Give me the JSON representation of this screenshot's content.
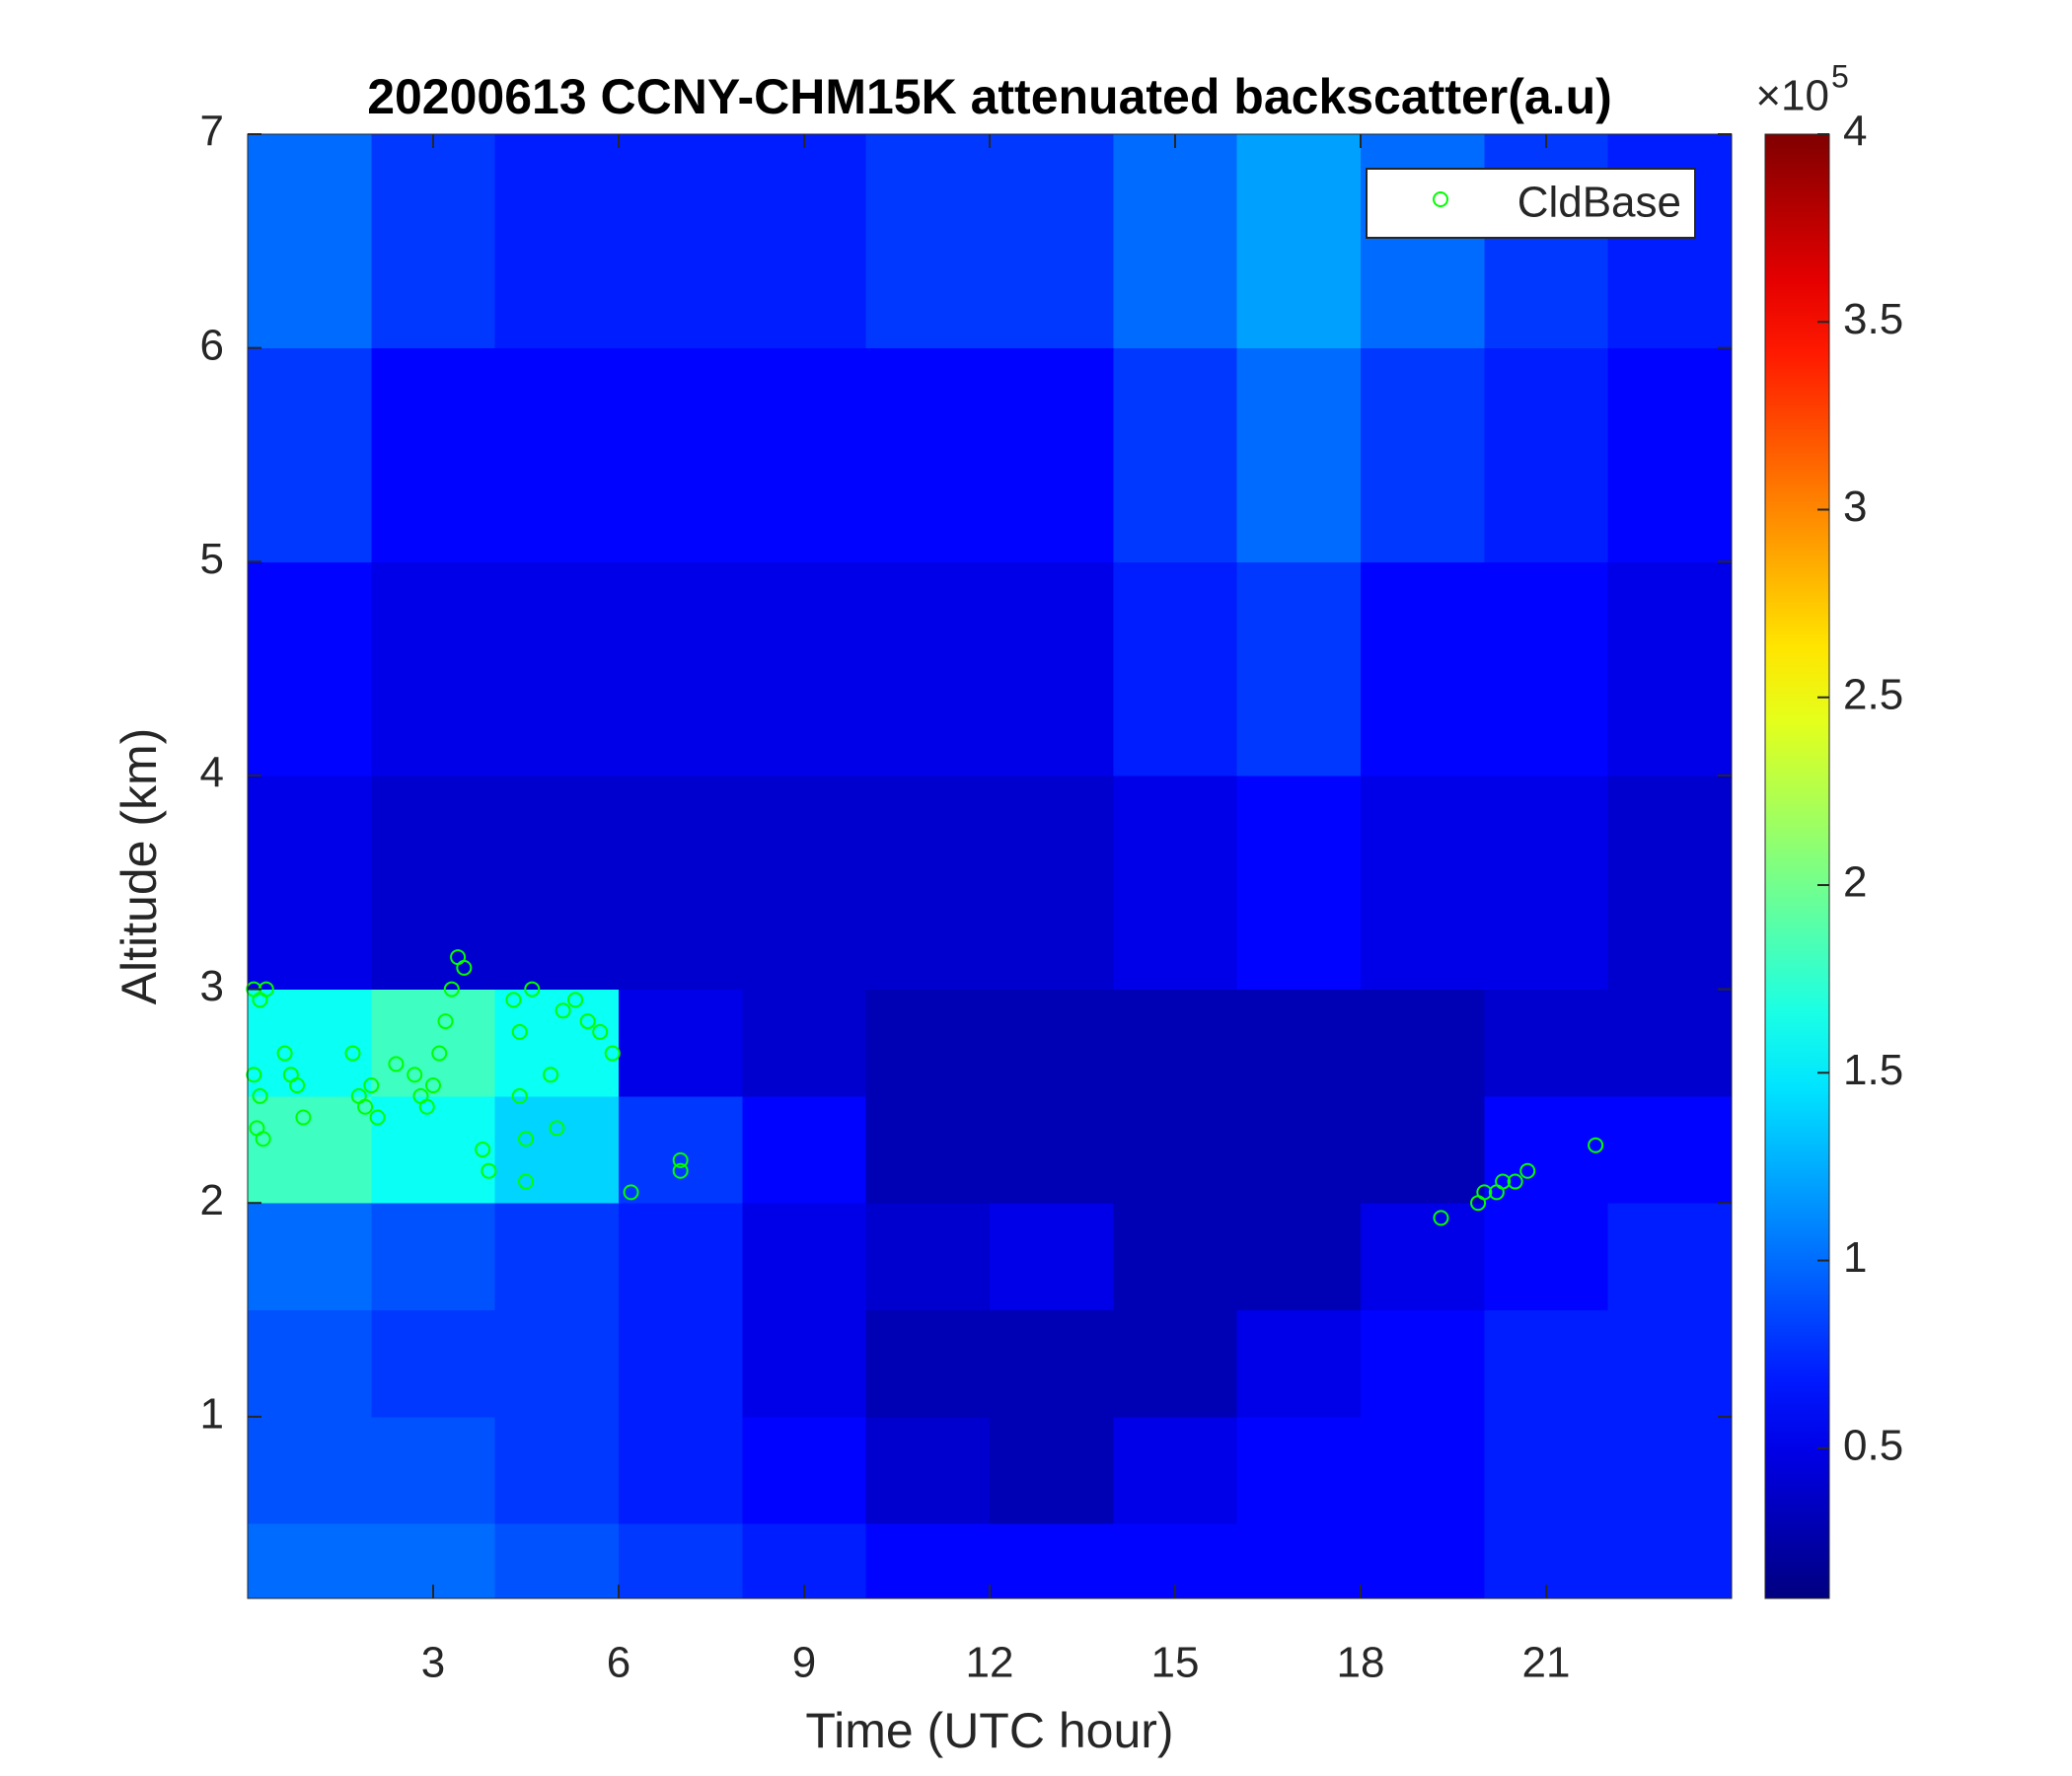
{
  "chart_data": {
    "type": "heatmap",
    "title": "20200613 CCNY-CHM15K attenuated backscatter(a.u)",
    "x_label": "Time (UTC hour)",
    "y_label": "Altitude (km)",
    "xlim": [
      0,
      24
    ],
    "ylim": [
      0.15,
      7
    ],
    "xticks": [
      3,
      6,
      9,
      12,
      15,
      18,
      21
    ],
    "yticks": [
      1,
      2,
      3,
      4,
      5,
      6,
      7
    ],
    "colormap": "jet",
    "clim": [
      0.1,
      4
    ],
    "cticks": [
      0.5,
      1,
      1.5,
      2,
      2.5,
      3,
      3.5,
      4
    ],
    "colorbar_multiplier": {
      "base": "×10",
      "exponent": "5"
    },
    "x_edges": [
      0,
      2,
      4,
      6,
      8,
      10,
      12,
      14,
      16,
      18,
      20,
      22,
      24
    ],
    "y_edges": [
      0.15,
      0.5,
      1,
      1.5,
      2,
      2.5,
      3,
      4,
      5,
      6,
      7
    ],
    "z": [
      [
        1.0,
        1.0,
        0.9,
        0.8,
        0.7,
        0.6,
        0.6,
        0.6,
        0.6,
        0.6,
        0.7,
        0.7
      ],
      [
        0.9,
        0.9,
        0.8,
        0.7,
        0.6,
        0.4,
        0.3,
        0.5,
        0.6,
        0.6,
        0.7,
        0.7
      ],
      [
        0.9,
        0.8,
        0.8,
        0.7,
        0.5,
        0.3,
        0.3,
        0.3,
        0.5,
        0.6,
        0.7,
        0.7
      ],
      [
        1.0,
        0.9,
        0.8,
        0.7,
        0.5,
        0.4,
        0.5,
        0.3,
        0.3,
        0.5,
        0.6,
        0.7
      ],
      [
        1.8,
        1.6,
        1.4,
        0.8,
        0.6,
        0.3,
        0.3,
        0.3,
        0.3,
        0.3,
        0.6,
        0.6
      ],
      [
        1.6,
        1.8,
        1.6,
        0.5,
        0.4,
        0.3,
        0.3,
        0.3,
        0.3,
        0.3,
        0.4,
        0.4
      ],
      [
        0.5,
        0.4,
        0.4,
        0.4,
        0.4,
        0.4,
        0.4,
        0.5,
        0.6,
        0.5,
        0.5,
        0.4
      ],
      [
        0.6,
        0.5,
        0.5,
        0.5,
        0.5,
        0.5,
        0.5,
        0.7,
        0.8,
        0.6,
        0.6,
        0.5
      ],
      [
        0.8,
        0.6,
        0.6,
        0.6,
        0.6,
        0.6,
        0.6,
        0.8,
        1.0,
        0.8,
        0.7,
        0.6
      ],
      [
        1.0,
        0.8,
        0.7,
        0.7,
        0.7,
        0.8,
        0.8,
        1.0,
        1.2,
        1.0,
        0.8,
        0.7
      ]
    ],
    "legend": "northeast",
    "series": [
      {
        "name": "CldBase",
        "color": "#00ff00",
        "x": [
          0.1,
          0.2,
          0.3,
          0.1,
          0.15,
          0.2,
          0.25,
          0.6,
          0.7,
          0.8,
          0.9,
          1.7,
          1.8,
          1.9,
          2.0,
          2.1,
          2.4,
          2.7,
          2.8,
          2.9,
          3.0,
          3.1,
          3.2,
          3.3,
          3.4,
          3.5,
          3.8,
          3.9,
          4.3,
          4.4,
          4.4,
          4.5,
          4.5,
          4.6,
          4.9,
          5.0,
          5.1,
          5.3,
          5.5,
          5.7,
          5.9,
          6.2,
          7.0,
          7.0,
          19.3,
          19.9,
          20.0,
          20.2,
          20.3,
          20.5,
          20.7,
          21.8
        ],
        "y": [
          3.0,
          2.95,
          3.0,
          2.6,
          2.35,
          2.5,
          2.3,
          2.7,
          2.6,
          2.55,
          2.4,
          2.7,
          2.5,
          2.45,
          2.55,
          2.4,
          2.65,
          2.6,
          2.5,
          2.45,
          2.55,
          2.7,
          2.85,
          3.0,
          3.15,
          3.1,
          2.25,
          2.15,
          2.95,
          2.8,
          2.5,
          2.3,
          2.1,
          3.0,
          2.6,
          2.35,
          2.9,
          2.95,
          2.85,
          2.8,
          2.7,
          2.05,
          2.15,
          2.2,
          1.93,
          2.0,
          2.05,
          2.05,
          2.1,
          2.1,
          2.15,
          2.27
        ]
      }
    ]
  }
}
